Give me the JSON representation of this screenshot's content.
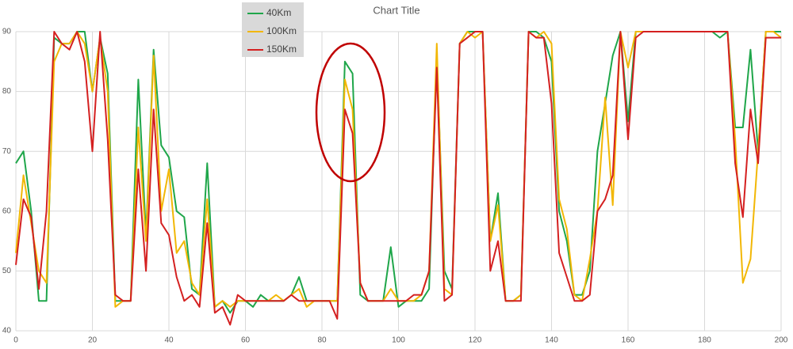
{
  "chart_data": {
    "type": "line",
    "title": "Chart Title",
    "x": [
      0,
      2,
      4,
      6,
      8,
      10,
      12,
      14,
      16,
      18,
      20,
      22,
      24,
      26,
      28,
      30,
      32,
      34,
      36,
      38,
      40,
      42,
      44,
      46,
      48,
      50,
      52,
      54,
      56,
      58,
      60,
      62,
      64,
      66,
      68,
      70,
      72,
      74,
      76,
      78,
      80,
      82,
      84,
      86,
      88,
      90,
      92,
      94,
      96,
      98,
      100,
      102,
      104,
      106,
      108,
      110,
      112,
      114,
      116,
      118,
      120,
      122,
      124,
      126,
      128,
      130,
      132,
      134,
      136,
      138,
      140,
      142,
      144,
      146,
      148,
      150,
      152,
      154,
      156,
      158,
      160,
      162,
      164,
      166,
      168,
      170,
      172,
      174,
      176,
      178,
      180,
      182,
      184,
      186,
      188,
      190,
      192,
      194,
      196,
      198,
      200
    ],
    "series": [
      {
        "name": "40Km",
        "color": "#1fa64a",
        "values": [
          68,
          70,
          60,
          45,
          45,
          89,
          88,
          88,
          90,
          90,
          80,
          89,
          83,
          45,
          45,
          45,
          82,
          56,
          87,
          71,
          69,
          60,
          59,
          47,
          46,
          68,
          44,
          45,
          43,
          45,
          45,
          44,
          46,
          45,
          45,
          45,
          46,
          49,
          45,
          45,
          45,
          45,
          45,
          85,
          83,
          46,
          45,
          45,
          45,
          54,
          44,
          45,
          45,
          45,
          47,
          86,
          50,
          47,
          88,
          90,
          90,
          90,
          55,
          63,
          45,
          45,
          46,
          90,
          90,
          89,
          85,
          60,
          55,
          46,
          46,
          50,
          70,
          78,
          86,
          90,
          75,
          90,
          90,
          90,
          90,
          90,
          90,
          90,
          90,
          90,
          90,
          90,
          89,
          90,
          74,
          74,
          87,
          70,
          90,
          90,
          90
        ]
      },
      {
        "name": "100Km",
        "color": "#f2b705",
        "values": [
          53,
          66,
          58,
          50,
          48,
          85,
          88,
          88,
          90,
          88,
          80,
          89,
          80,
          44,
          45,
          45,
          74,
          55,
          86,
          60,
          67,
          53,
          55,
          48,
          46,
          62,
          44,
          45,
          44,
          45,
          45,
          45,
          45,
          45,
          46,
          45,
          46,
          47,
          44,
          45,
          45,
          45,
          45,
          82,
          77,
          48,
          45,
          45,
          45,
          47,
          45,
          45,
          45,
          46,
          50,
          88,
          47,
          46,
          88,
          90,
          89,
          90,
          55,
          61,
          45,
          45,
          46,
          90,
          89,
          90,
          88,
          62,
          57,
          46,
          45,
          52,
          60,
          79,
          61,
          90,
          84,
          90,
          90,
          90,
          90,
          90,
          90,
          90,
          90,
          90,
          90,
          90,
          90,
          90,
          72,
          48,
          52,
          70,
          90,
          90,
          89
        ]
      },
      {
        "name": "150Km",
        "color": "#d42020",
        "values": [
          51,
          62,
          59,
          47,
          60,
          90,
          88,
          87,
          90,
          85,
          70,
          90,
          72,
          46,
          45,
          45,
          67,
          50,
          77,
          58,
          56,
          49,
          45,
          46,
          44,
          58,
          43,
          44,
          41,
          46,
          45,
          45,
          45,
          45,
          45,
          45,
          46,
          45,
          45,
          45,
          45,
          45,
          42,
          77,
          73,
          48,
          45,
          45,
          45,
          45,
          45,
          45,
          46,
          46,
          50,
          84,
          45,
          46,
          88,
          89,
          90,
          90,
          50,
          55,
          45,
          45,
          45,
          90,
          89,
          89,
          78,
          53,
          49,
          45,
          45,
          46,
          60,
          62,
          66,
          90,
          72,
          89,
          90,
          90,
          90,
          90,
          90,
          90,
          90,
          90,
          90,
          90,
          90,
          90,
          68,
          59,
          77,
          68,
          89,
          89,
          89
        ]
      }
    ],
    "xlim": [
      0,
      200
    ],
    "xticks": [
      0,
      20,
      40,
      60,
      80,
      100,
      120,
      140,
      160,
      180,
      200
    ],
    "ylim": [
      40,
      90
    ],
    "yticks": [
      40,
      50,
      60,
      70,
      80,
      90
    ],
    "grid": true
  }
}
